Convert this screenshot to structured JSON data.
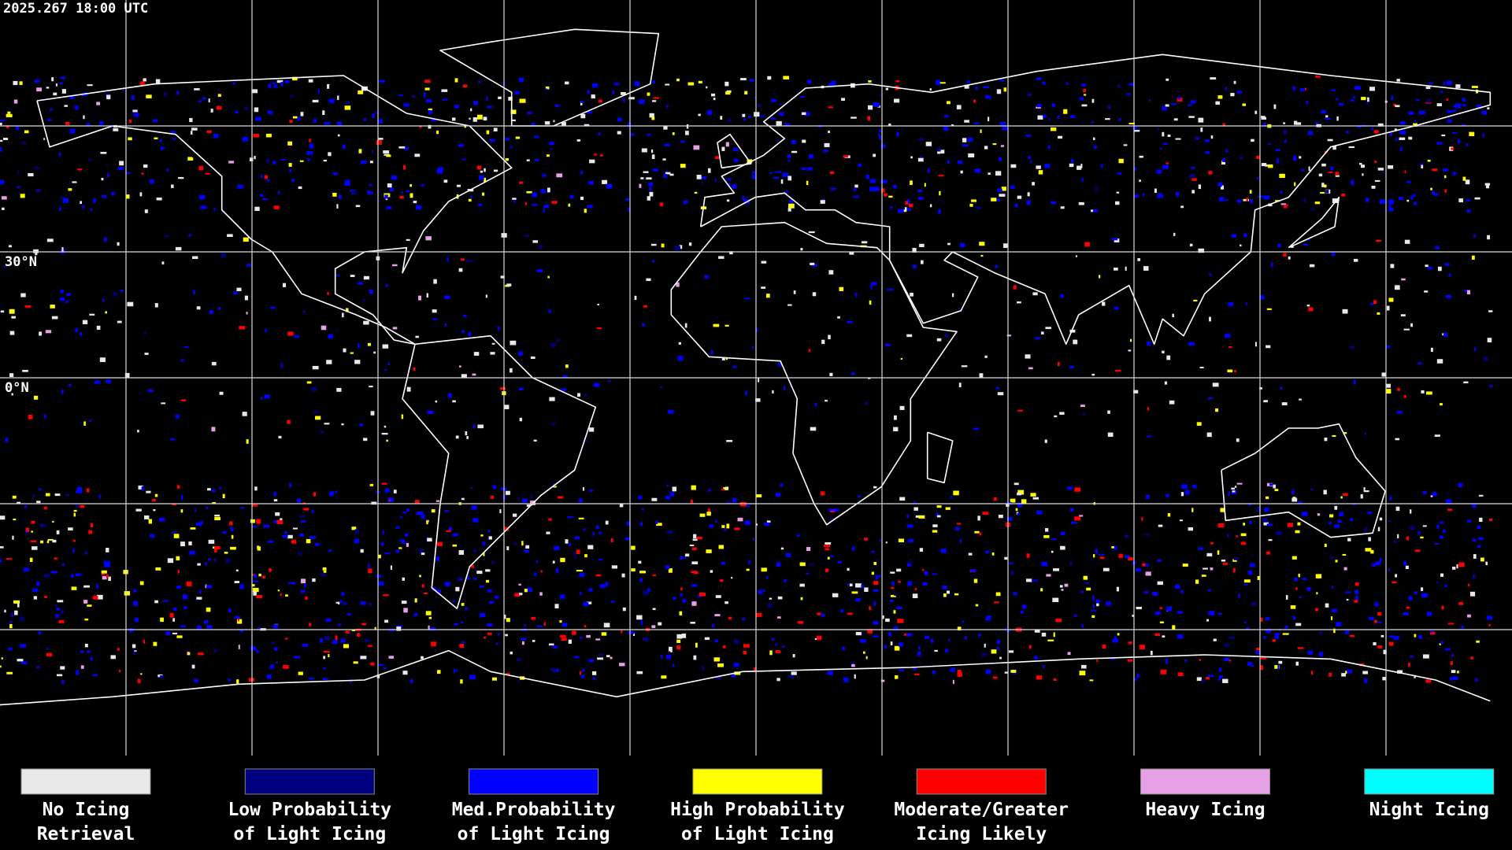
{
  "header": {
    "timestamp": "2025.267 18:00 UTC"
  },
  "map": {
    "latitude_labels": [
      "30°N",
      "0°N"
    ]
  },
  "legend": {
    "items": [
      {
        "lines": [
          "No Icing",
          "Retrieval"
        ],
        "color": "#e8e8e8"
      },
      {
        "lines": [
          "Low Probability",
          "of Light Icing"
        ],
        "color": "#000080"
      },
      {
        "lines": [
          "Med.Probability",
          "of Light Icing"
        ],
        "color": "#0000ff"
      },
      {
        "lines": [
          "High Probability",
          "of Light Icing"
        ],
        "color": "#ffff00"
      },
      {
        "lines": [
          "Moderate/Greater",
          "Icing Likely"
        ],
        "color": "#ff0000"
      },
      {
        "lines": [
          "Heavy Icing"
        ],
        "color": "#e6a0e6"
      },
      {
        "lines": [
          "Night Icing"
        ],
        "color": "#00ffff"
      }
    ]
  }
}
